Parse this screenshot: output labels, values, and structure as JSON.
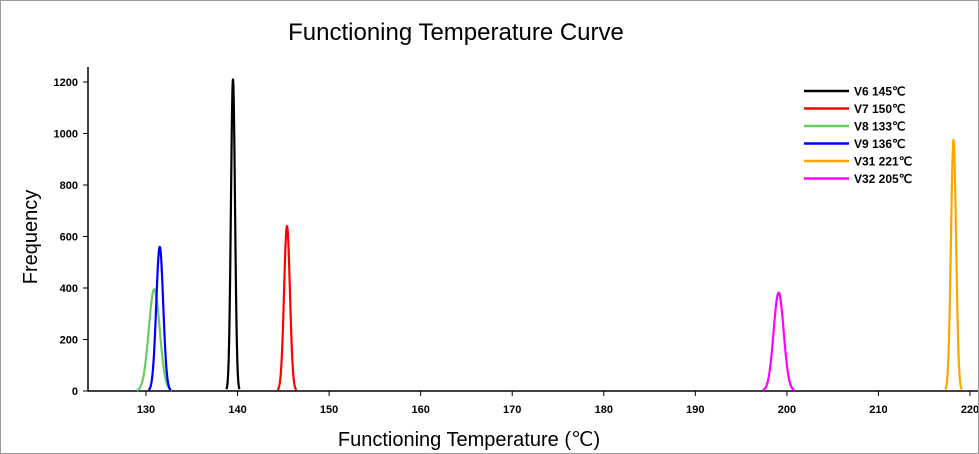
{
  "chart_data": {
    "type": "line",
    "title": "Functioning Temperature Curve",
    "xlabel": "Functioning Temperature (℃)",
    "ylabel": "Frequency",
    "xlim": [
      125,
      220
    ],
    "ylim": [
      0,
      1250
    ],
    "xticks": [
      130,
      140,
      150,
      160,
      170,
      180,
      190,
      200,
      210,
      220
    ],
    "xtick_labels": [
      "130",
      "140",
      "150",
      "160",
      "170",
      "180",
      "190",
      "200",
      "210",
      "220"
    ],
    "yticks": [
      0,
      200,
      400,
      600,
      800,
      1000,
      1200
    ],
    "ytick_labels": [
      "0",
      "200",
      "400",
      "600",
      "800",
      "1000",
      "1200"
    ],
    "grid": false,
    "legend_position": "top-right",
    "series": [
      {
        "name": "V6 145℃",
        "color": "#000000",
        "peak_x": 139.5,
        "peak_y": 1210,
        "sigma": 0.22,
        "x": [
          138.8,
          139.0,
          139.2,
          139.4,
          139.5,
          139.6,
          139.8,
          140.0,
          140.2
        ],
        "y": [
          0,
          70,
          650,
          1150,
          1210,
          1150,
          650,
          70,
          0
        ]
      },
      {
        "name": "V7 150℃",
        "color": "#ff0000",
        "peak_x": 145.4,
        "peak_y": 640,
        "sigma": 0.32,
        "x": [
          144.4,
          144.8,
          145.1,
          145.4,
          145.7,
          146.0,
          146.4
        ],
        "y": [
          0,
          110,
          420,
          640,
          420,
          110,
          0
        ]
      },
      {
        "name": "V8 133℃",
        "color": "#66cc66",
        "peak_x": 130.9,
        "peak_y": 395,
        "sigma": 0.6,
        "x": [
          129.2,
          129.9,
          130.5,
          130.9,
          131.3,
          131.9,
          132.6
        ],
        "y": [
          0,
          90,
          310,
          395,
          310,
          90,
          0
        ]
      },
      {
        "name": "V9 136℃",
        "color": "#0000ff",
        "peak_x": 131.5,
        "peak_y": 560,
        "sigma": 0.38,
        "x": [
          130.3,
          130.8,
          131.2,
          131.5,
          131.8,
          132.2,
          132.7
        ],
        "y": [
          0,
          110,
          400,
          560,
          400,
          110,
          0
        ]
      },
      {
        "name": "V31 221℃",
        "color": "#ffa500",
        "peak_x": 218.2,
        "peak_y": 975,
        "sigma": 0.28,
        "x": [
          217.2,
          217.6,
          217.9,
          218.2,
          218.5,
          218.8,
          219.2
        ],
        "y": [
          0,
          160,
          620,
          975,
          620,
          160,
          0
        ]
      },
      {
        "name": "V32 205℃",
        "color": "#ff00ff",
        "peak_x": 199.1,
        "peak_y": 382,
        "sigma": 0.55,
        "x": [
          197.4,
          198.1,
          198.7,
          199.1,
          199.5,
          200.1,
          200.8
        ],
        "y": [
          0,
          90,
          300,
          382,
          300,
          90,
          0
        ]
      }
    ]
  }
}
